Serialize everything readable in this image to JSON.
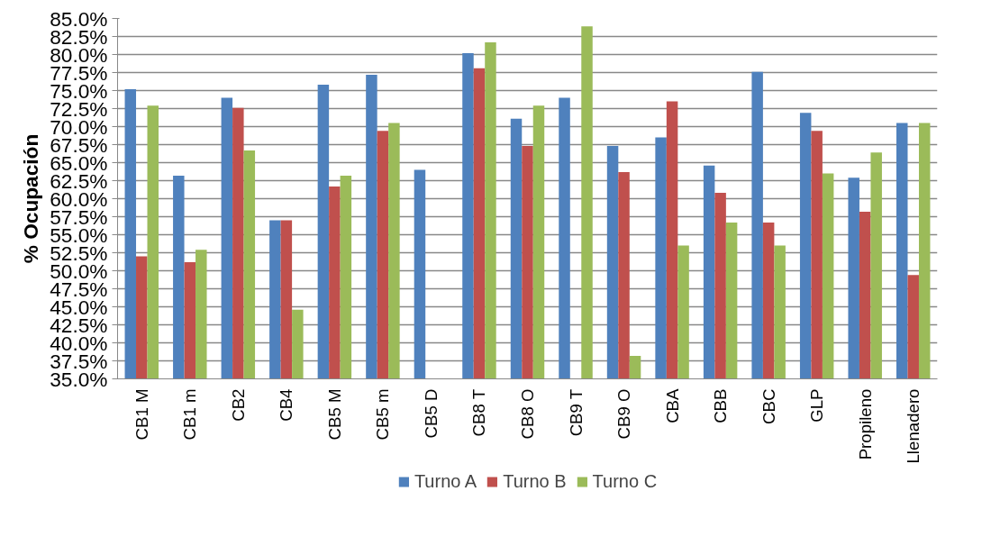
{
  "chart_data": {
    "type": "bar",
    "ylabel": "% Ocupación",
    "categories": [
      "CB1 M",
      "CB1 m",
      "CB2",
      "CB4",
      "CB5 M",
      "CB5 m",
      "CB5 D",
      "CB8 T",
      "CB8 O",
      "CB9 T",
      "CB9 O",
      "CBA",
      "CBB",
      "CBC",
      "GLP",
      "Propileno",
      "Llenadero"
    ],
    "series": [
      {
        "name": "Turno A",
        "color": "#4f81bd",
        "values": [
          75.2,
          63.2,
          74.0,
          57.0,
          75.8,
          77.2,
          64.0,
          80.2,
          71.1,
          74.0,
          67.3,
          68.5,
          64.6,
          77.6,
          71.9,
          62.9,
          70.5
        ]
      },
      {
        "name": "Turno B",
        "color": "#c0504d",
        "values": [
          52.0,
          51.2,
          72.6,
          57.0,
          61.7,
          69.4,
          null,
          78.1,
          67.3,
          null,
          63.7,
          73.5,
          60.8,
          56.7,
          69.4,
          58.2,
          49.4
        ]
      },
      {
        "name": "Turno C",
        "color": "#9bbb59",
        "values": [
          72.9,
          52.9,
          66.7,
          44.6,
          63.2,
          70.5,
          null,
          81.7,
          72.9,
          83.9,
          38.2,
          53.5,
          56.7,
          53.5,
          63.5,
          66.4,
          70.5
        ]
      }
    ],
    "ylim": [
      35,
      85
    ],
    "yticks": [
      {
        "value": 35,
        "label": "35.0%"
      },
      {
        "value": 37.5,
        "label": "37.5%"
      },
      {
        "value": 40,
        "label": "40.0%"
      },
      {
        "value": 42.5,
        "label": "42.5%"
      },
      {
        "value": 45,
        "label": "45.0%"
      },
      {
        "value": 47.5,
        "label": "47.5%"
      },
      {
        "value": 50,
        "label": "50.0%"
      },
      {
        "value": 52.5,
        "label": "52.5%"
      },
      {
        "value": 55,
        "label": "55.0%"
      },
      {
        "value": 57.5,
        "label": "57.5%"
      },
      {
        "value": 60,
        "label": "60.0%"
      },
      {
        "value": 62.5,
        "label": "62.5%"
      },
      {
        "value": 65,
        "label": "65.0%"
      },
      {
        "value": 67.5,
        "label": "67.5%"
      },
      {
        "value": 70,
        "label": "70.0%"
      },
      {
        "value": 72.5,
        "label": "72.5%"
      },
      {
        "value": 75,
        "label": "75.0%"
      },
      {
        "value": 77.5,
        "label": "77.5%"
      },
      {
        "value": 80,
        "label": "80.0%"
      },
      {
        "value": 82.5,
        "label": "82.5%"
      },
      {
        "value": 85,
        "label": "85.0%"
      }
    ],
    "grid": "y",
    "legend": "bottom"
  }
}
